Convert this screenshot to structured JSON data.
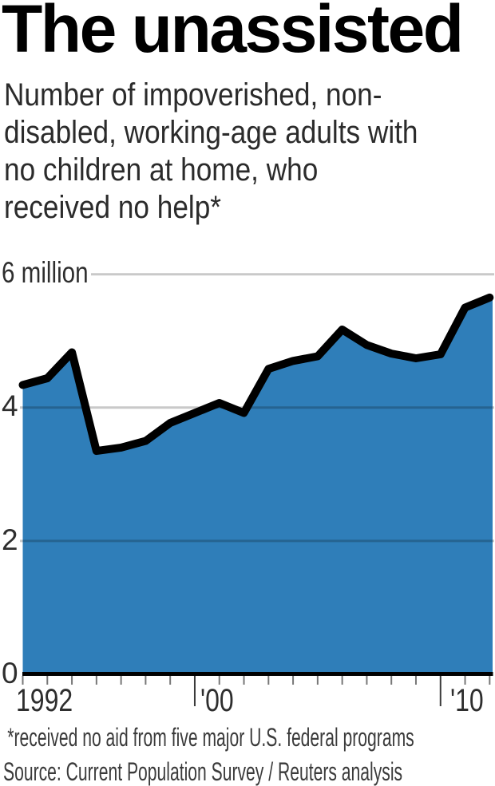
{
  "chart_data": {
    "type": "area",
    "title": "The unassisted",
    "subtitle": "Number of impoverished, non-disabled, working-age adults with no children at home, who received no help*",
    "subtitle_lines": [
      "Number of impoverished, non-",
      "disabled, working-age adults with",
      "no children at home, who",
      "received no help*"
    ],
    "x": [
      1992,
      1993,
      1994,
      1995,
      1996,
      1997,
      1998,
      1999,
      2000,
      2001,
      2002,
      2003,
      2004,
      2005,
      2006,
      2007,
      2008,
      2009,
      2010,
      2011
    ],
    "series": [
      {
        "name": "Adults who received no help (millions)",
        "values": [
          4.34,
          4.44,
          4.83,
          3.35,
          3.4,
          3.5,
          3.77,
          3.92,
          4.07,
          3.92,
          4.58,
          4.7,
          4.77,
          5.17,
          4.94,
          4.81,
          4.74,
          4.8,
          5.5,
          5.65
        ]
      }
    ],
    "ylim": [
      0,
      6
    ],
    "yticks": [
      {
        "value": 0,
        "label": "0"
      },
      {
        "value": 2,
        "label": "2"
      },
      {
        "value": 4,
        "label": "4"
      },
      {
        "value": 6,
        "label": "6 million"
      }
    ],
    "xtick_labels": [
      {
        "label": "1992",
        "year": 1992
      },
      {
        "label": "'00",
        "year": 2000
      },
      {
        "label": "'10",
        "year": 2010
      }
    ],
    "tall_tick_indices": [
      7,
      17
    ],
    "grid": "horizontal",
    "legend": "none",
    "colors": {
      "area": "#2F7EB9",
      "line": "#000000",
      "gridline_over_white": "#c9c9c9",
      "axis": "#000000"
    }
  },
  "footer": {
    "footnote": "*received no aid from five major U.S. federal programs",
    "source": "Source: Current Population Survey / Reuters analysis"
  }
}
